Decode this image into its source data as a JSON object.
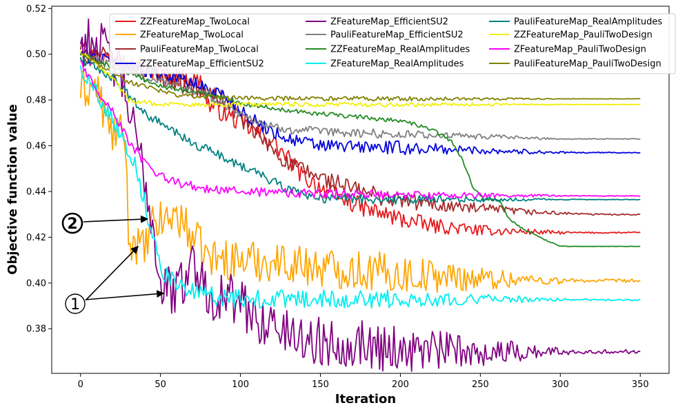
{
  "chart_data": {
    "type": "line",
    "xlabel": "Iteration",
    "ylabel": "Objective function value",
    "xlim": [
      -18,
      368
    ],
    "ylim": [
      0.3605,
      0.521
    ],
    "xticks": [
      0,
      50,
      100,
      150,
      200,
      250,
      300,
      350
    ],
    "yticks": [
      0.38,
      0.4,
      0.42,
      0.44,
      0.46,
      0.48,
      0.5,
      0.52
    ],
    "xtick_labels": [
      "0",
      "50",
      "100",
      "150",
      "200",
      "250",
      "300",
      "350"
    ],
    "ytick_labels": [
      "0.38",
      "0.40",
      "0.42",
      "0.44",
      "0.46",
      "0.48",
      "0.50",
      "0.52"
    ],
    "grid": false,
    "legend": {
      "position": "top-right",
      "columns": 3
    },
    "series": [
      {
        "name": "ZZFeatureMap_TwoLocal",
        "color": "#e41a1c",
        "noise": 0.004,
        "points": [
          [
            0,
            0.5
          ],
          [
            20,
            0.498
          ],
          [
            40,
            0.494
          ],
          [
            60,
            0.49
          ],
          [
            75,
            0.488
          ],
          [
            80,
            0.478
          ],
          [
            100,
            0.47
          ],
          [
            120,
            0.462
          ],
          [
            140,
            0.446
          ],
          [
            160,
            0.438
          ],
          [
            180,
            0.432
          ],
          [
            200,
            0.428
          ],
          [
            220,
            0.425
          ],
          [
            250,
            0.423
          ],
          [
            300,
            0.422
          ],
          [
            350,
            0.422
          ]
        ]
      },
      {
        "name": "ZFeatureMap_TwoLocal",
        "color": "#ffa500",
        "noise": 0.009,
        "points": [
          [
            0,
            0.484
          ],
          [
            10,
            0.486
          ],
          [
            18,
            0.466
          ],
          [
            28,
            0.464
          ],
          [
            30,
            0.42
          ],
          [
            40,
            0.414
          ],
          [
            45,
            0.425
          ],
          [
            60,
            0.43
          ],
          [
            80,
            0.411
          ],
          [
            100,
            0.41
          ],
          [
            130,
            0.409
          ],
          [
            150,
            0.407
          ],
          [
            200,
            0.404
          ],
          [
            250,
            0.402
          ],
          [
            300,
            0.401
          ],
          [
            350,
            0.401
          ]
        ]
      },
      {
        "name": "PauliFeatureMap_TwoLocal",
        "color": "#a52a2a",
        "noise": 0.004,
        "points": [
          [
            0,
            0.503
          ],
          [
            30,
            0.495
          ],
          [
            60,
            0.488
          ],
          [
            90,
            0.48
          ],
          [
            110,
            0.465
          ],
          [
            130,
            0.452
          ],
          [
            150,
            0.446
          ],
          [
            175,
            0.44
          ],
          [
            200,
            0.436
          ],
          [
            240,
            0.433
          ],
          [
            280,
            0.431
          ],
          [
            320,
            0.43
          ],
          [
            350,
            0.43
          ]
        ]
      },
      {
        "name": "ZZFeatureMap_EfficientSU2",
        "color": "#0000dd",
        "noise": 0.003,
        "points": [
          [
            0,
            0.5
          ],
          [
            30,
            0.495
          ],
          [
            60,
            0.49
          ],
          [
            90,
            0.482
          ],
          [
            110,
            0.47
          ],
          [
            130,
            0.463
          ],
          [
            150,
            0.46
          ],
          [
            200,
            0.459
          ],
          [
            250,
            0.458
          ],
          [
            300,
            0.457
          ],
          [
            350,
            0.457
          ]
        ]
      },
      {
        "name": "ZFeatureMap_EfficientSU2",
        "color": "#800080",
        "noise": 0.011,
        "points": [
          [
            0,
            0.505
          ],
          [
            10,
            0.506
          ],
          [
            25,
            0.492
          ],
          [
            32,
            0.47
          ],
          [
            42,
            0.44
          ],
          [
            50,
            0.4
          ],
          [
            60,
            0.395
          ],
          [
            70,
            0.41
          ],
          [
            80,
            0.395
          ],
          [
            95,
            0.393
          ],
          [
            110,
            0.385
          ],
          [
            130,
            0.378
          ],
          [
            150,
            0.374
          ],
          [
            175,
            0.374
          ],
          [
            200,
            0.371
          ],
          [
            250,
            0.37
          ],
          [
            300,
            0.37
          ],
          [
            350,
            0.37
          ]
        ]
      },
      {
        "name": "PauliFeatureMap_EfficientSU2",
        "color": "#808080",
        "noise": 0.002,
        "points": [
          [
            0,
            0.5
          ],
          [
            40,
            0.49
          ],
          [
            80,
            0.482
          ],
          [
            100,
            0.474
          ],
          [
            120,
            0.468
          ],
          [
            150,
            0.466
          ],
          [
            200,
            0.465
          ],
          [
            250,
            0.464
          ],
          [
            300,
            0.463
          ],
          [
            350,
            0.463
          ]
        ]
      },
      {
        "name": "ZZFeatureMap_RealAmplitudes",
        "color": "#228b22",
        "noise": 0.001,
        "points": [
          [
            0,
            0.5
          ],
          [
            50,
            0.486
          ],
          [
            90,
            0.481
          ],
          [
            105,
            0.478
          ],
          [
            125,
            0.476
          ],
          [
            150,
            0.474
          ],
          [
            200,
            0.471
          ],
          [
            220,
            0.467
          ],
          [
            232,
            0.462
          ],
          [
            238,
            0.455
          ],
          [
            246,
            0.441
          ],
          [
            252,
            0.437
          ],
          [
            262,
            0.436
          ],
          [
            268,
            0.428
          ],
          [
            278,
            0.423
          ],
          [
            290,
            0.419
          ],
          [
            300,
            0.416
          ],
          [
            350,
            0.416
          ]
        ]
      },
      {
        "name": "ZFeatureMap_RealAmplitudes",
        "color": "#00eeee",
        "noise": 0.004,
        "points": [
          [
            0,
            0.494
          ],
          [
            15,
            0.478
          ],
          [
            25,
            0.466
          ],
          [
            35,
            0.45
          ],
          [
            42,
            0.43
          ],
          [
            47,
            0.416
          ],
          [
            52,
            0.405
          ],
          [
            62,
            0.398
          ],
          [
            75,
            0.395
          ],
          [
            100,
            0.393
          ],
          [
            150,
            0.393
          ],
          [
            250,
            0.393
          ],
          [
            350,
            0.3925
          ]
        ]
      },
      {
        "name": "PauliFeatureMap_RealAmplitudes",
        "color": "#008080",
        "noise": 0.002,
        "points": [
          [
            0,
            0.498
          ],
          [
            20,
            0.49
          ],
          [
            40,
            0.474
          ],
          [
            70,
            0.461
          ],
          [
            90,
            0.455
          ],
          [
            110,
            0.448
          ],
          [
            130,
            0.441
          ],
          [
            150,
            0.437
          ],
          [
            200,
            0.4365
          ],
          [
            350,
            0.4365
          ]
        ]
      },
      {
        "name": "ZZFeatureMap_PauliTwoDesign",
        "color": "#f0f000",
        "noise": 0.001,
        "points": [
          [
            0,
            0.501
          ],
          [
            20,
            0.49
          ],
          [
            30,
            0.48
          ],
          [
            50,
            0.478
          ],
          [
            100,
            0.478
          ],
          [
            350,
            0.478
          ]
        ]
      },
      {
        "name": "ZFeatureMap_PauliTwoDesign",
        "color": "#ff00ff",
        "noise": 0.002,
        "points": [
          [
            0,
            0.496
          ],
          [
            10,
            0.485
          ],
          [
            20,
            0.475
          ],
          [
            30,
            0.462
          ],
          [
            45,
            0.448
          ],
          [
            60,
            0.444
          ],
          [
            80,
            0.441
          ],
          [
            100,
            0.44
          ],
          [
            150,
            0.439
          ],
          [
            200,
            0.4385
          ],
          [
            350,
            0.438
          ]
        ]
      },
      {
        "name": "PauliFeatureMap_PauliTwoDesign",
        "color": "#808000",
        "noise": 0.001,
        "points": [
          [
            0,
            0.5
          ],
          [
            30,
            0.488
          ],
          [
            60,
            0.482
          ],
          [
            90,
            0.481
          ],
          [
            150,
            0.4805
          ],
          [
            350,
            0.4805
          ]
        ]
      }
    ],
    "annotations": [
      {
        "label": "2",
        "target": [
          42,
          0.428
        ]
      },
      {
        "label": "1",
        "target": [
          36,
          0.416
        ]
      },
      {
        "label": "1",
        "target": [
          52,
          0.3955
        ]
      }
    ]
  }
}
